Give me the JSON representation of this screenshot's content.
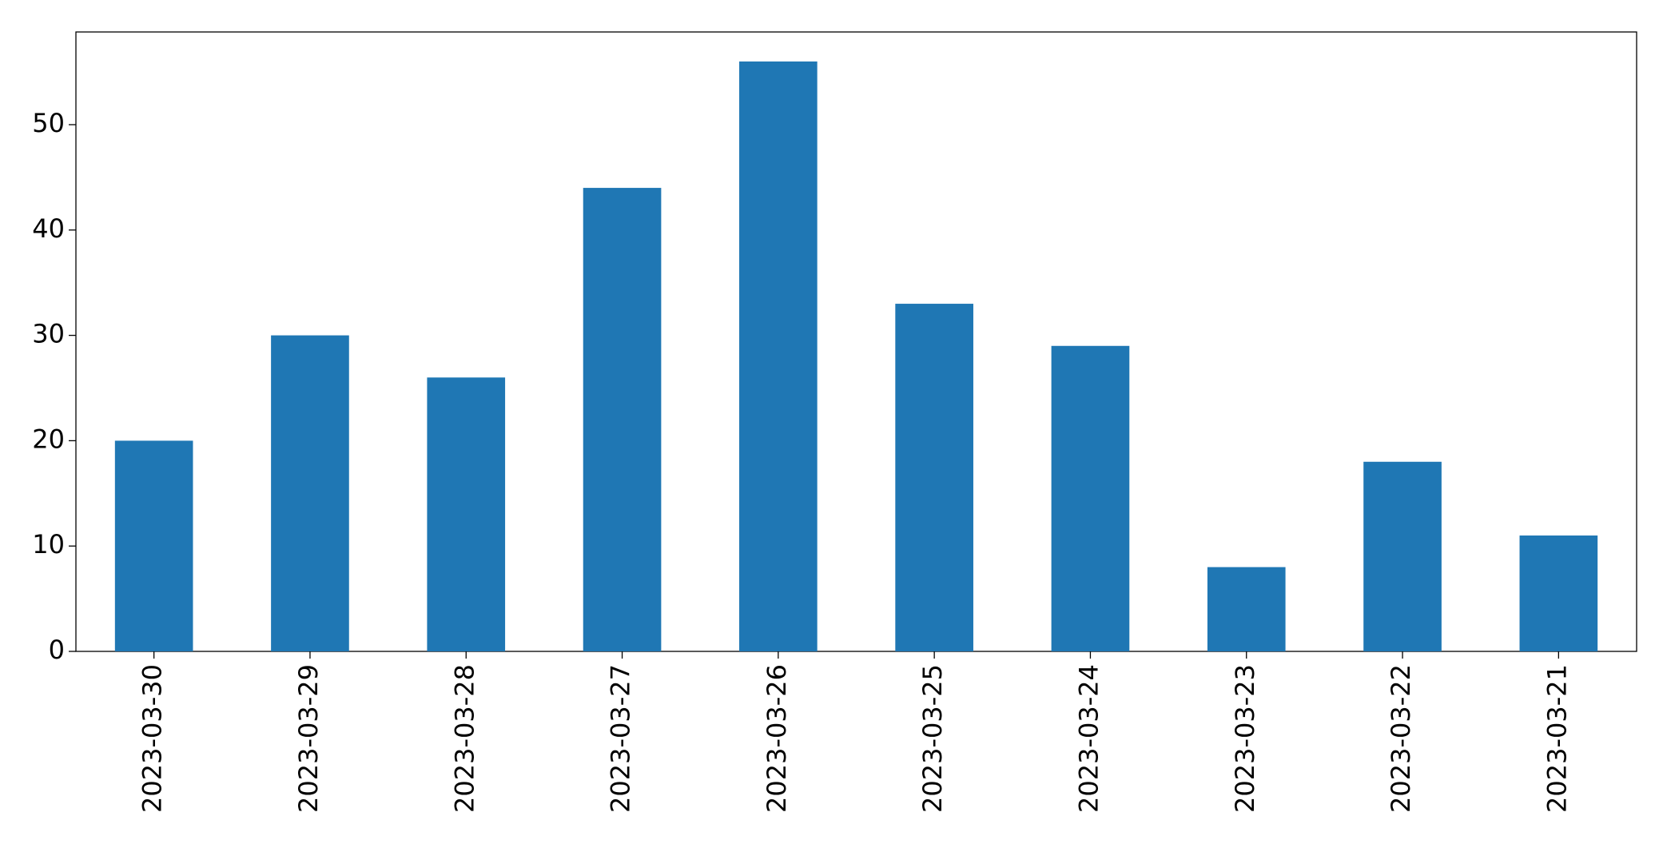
{
  "chart_data": {
    "type": "bar",
    "categories": [
      "2023-03-30",
      "2023-03-29",
      "2023-03-28",
      "2023-03-27",
      "2023-03-26",
      "2023-03-25",
      "2023-03-24",
      "2023-03-23",
      "2023-03-22",
      "2023-03-21"
    ],
    "values": [
      20,
      30,
      26,
      44,
      56,
      33,
      29,
      8,
      18,
      11
    ],
    "color": "#1f77b4",
    "ylim": [
      0,
      58.8
    ],
    "yticks": [
      0,
      10,
      20,
      30,
      40,
      50
    ],
    "grid": false
  }
}
